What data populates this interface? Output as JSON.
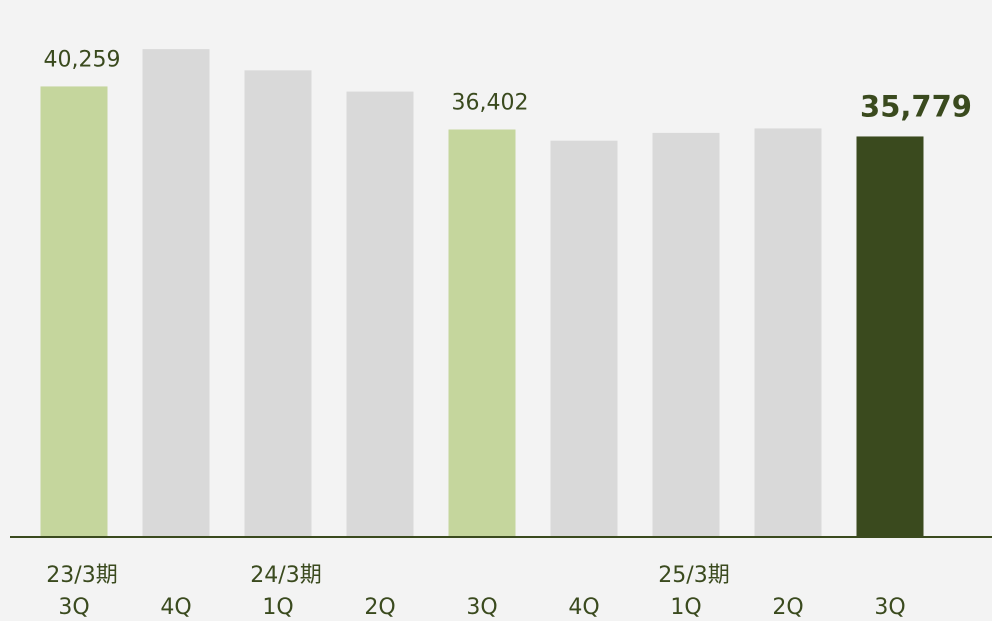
{
  "chart_data": {
    "type": "bar",
    "categories": [
      "3Q",
      "4Q",
      "1Q",
      "2Q",
      "3Q",
      "4Q",
      "1Q",
      "2Q",
      "3Q"
    ],
    "period_labels": [
      "23/3期",
      null,
      "24/3期",
      null,
      null,
      null,
      "25/3期",
      null,
      null
    ],
    "values": [
      40259,
      43600,
      41700,
      39800,
      36402,
      35400,
      36100,
      36500,
      35779
    ],
    "value_labels": [
      "40,259",
      null,
      null,
      null,
      "36,402",
      null,
      null,
      null,
      "35,779"
    ],
    "colors": [
      "#c5d69d",
      "#d9d9d9",
      "#d9d9d9",
      "#d9d9d9",
      "#c5d69d",
      "#d9d9d9",
      "#d9d9d9",
      "#d9d9d9",
      "#3a4a1e"
    ],
    "ylim": [
      0,
      48000
    ]
  }
}
